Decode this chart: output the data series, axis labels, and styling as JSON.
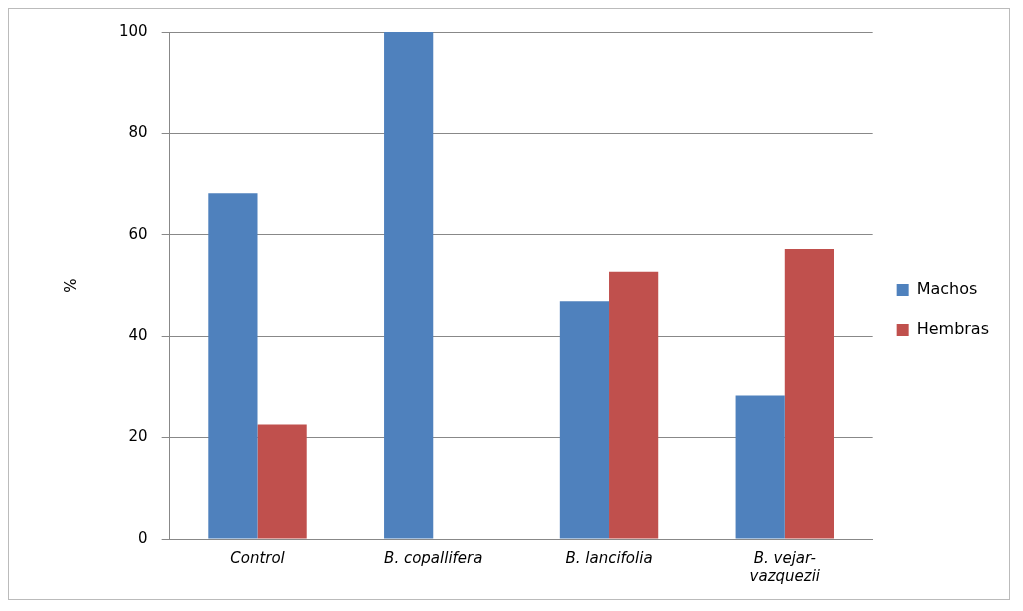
{
  "chart_data": {
    "type": "bar",
    "ylabel": "%",
    "categories": [
      "Control",
      "B. copallifera",
      "B. lancifolia",
      "B. vejar-vazquezii"
    ],
    "series": [
      {
        "name": "Machos",
        "color": "#4f81bd",
        "values": [
          68.2,
          100,
          46.9,
          28.3
        ]
      },
      {
        "name": "Hembras",
        "color": "#c0504d",
        "values": [
          22.6,
          0,
          52.7,
          57.2
        ]
      }
    ],
    "ylim": [
      0,
      100
    ],
    "yticks": [
      0,
      20,
      40,
      60,
      80,
      100
    ],
    "grid": "y",
    "legend": "right"
  }
}
